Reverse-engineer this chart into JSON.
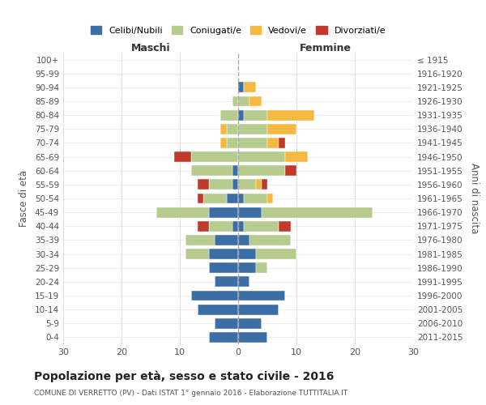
{
  "age_groups": [
    "0-4",
    "5-9",
    "10-14",
    "15-19",
    "20-24",
    "25-29",
    "30-34",
    "35-39",
    "40-44",
    "45-49",
    "50-54",
    "55-59",
    "60-64",
    "65-69",
    "70-74",
    "75-79",
    "80-84",
    "85-89",
    "90-94",
    "95-99",
    "100+"
  ],
  "birth_years": [
    "2011-2015",
    "2006-2010",
    "2001-2005",
    "1996-2000",
    "1991-1995",
    "1986-1990",
    "1981-1985",
    "1976-1980",
    "1971-1975",
    "1966-1970",
    "1961-1965",
    "1956-1960",
    "1951-1955",
    "1946-1950",
    "1941-1945",
    "1936-1940",
    "1931-1935",
    "1926-1930",
    "1921-1925",
    "1916-1920",
    "≤ 1915"
  ],
  "colors": {
    "celibi": "#3a6ea5",
    "coniugati": "#b5cc8e",
    "vedovi": "#f5b942",
    "divorziati": "#c0392b"
  },
  "males": {
    "celibi": [
      5,
      4,
      7,
      8,
      4,
      5,
      5,
      4,
      1,
      5,
      2,
      1,
      1,
      0,
      0,
      0,
      0,
      0,
      0,
      0,
      0
    ],
    "coniugati": [
      0,
      0,
      0,
      0,
      0,
      0,
      4,
      5,
      4,
      9,
      4,
      4,
      7,
      8,
      2,
      2,
      3,
      1,
      0,
      0,
      0
    ],
    "vedovi": [
      0,
      0,
      0,
      0,
      0,
      0,
      0,
      0,
      0,
      0,
      0,
      0,
      0,
      0,
      1,
      1,
      0,
      0,
      0,
      0,
      0
    ],
    "divorziati": [
      0,
      0,
      0,
      0,
      0,
      0,
      0,
      0,
      2,
      0,
      1,
      2,
      0,
      3,
      0,
      0,
      0,
      0,
      0,
      0,
      0
    ]
  },
  "females": {
    "celibi": [
      5,
      4,
      7,
      8,
      2,
      3,
      3,
      2,
      1,
      4,
      1,
      0,
      0,
      0,
      0,
      0,
      1,
      0,
      1,
      0,
      0
    ],
    "coniugati": [
      0,
      0,
      0,
      0,
      0,
      2,
      7,
      7,
      6,
      19,
      4,
      3,
      8,
      8,
      5,
      5,
      4,
      2,
      0,
      0,
      0
    ],
    "vedovi": [
      0,
      0,
      0,
      0,
      0,
      0,
      0,
      0,
      0,
      0,
      1,
      1,
      0,
      4,
      2,
      5,
      8,
      2,
      2,
      0,
      0
    ],
    "divorziati": [
      0,
      0,
      0,
      0,
      0,
      0,
      0,
      0,
      2,
      0,
      0,
      1,
      2,
      0,
      1,
      0,
      0,
      0,
      0,
      0,
      0
    ]
  },
  "title": "Popolazione per età, sesso e stato civile - 2016",
  "subtitle": "COMUNE DI VERRETTO (PV) - Dati ISTAT 1° gennaio 2016 - Elaborazione TUTTITALIA.IT",
  "xlabel_left": "Maschi",
  "xlabel_right": "Femmine",
  "ylabel_left": "Fasce di età",
  "ylabel_right": "Anni di nascita",
  "xlim": 30,
  "legend_labels": [
    "Celibi/Nubili",
    "Coniugati/e",
    "Vedovi/e",
    "Divorziati/e"
  ],
  "background_color": "#ffffff",
  "grid_color": "#cccccc"
}
